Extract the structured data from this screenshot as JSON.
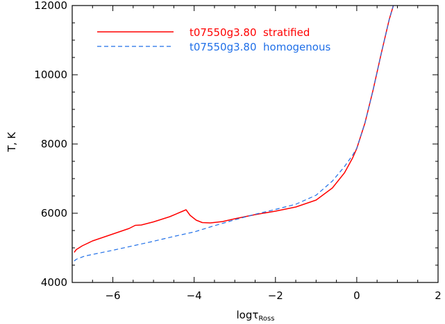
{
  "chart_data": {
    "type": "line",
    "xlabel": "logτ",
    "xlabel_sub": "Ross",
    "ylabel": "T, K",
    "xlim": [
      -7,
      2
    ],
    "ylim": [
      4000,
      12000
    ],
    "xticks": [
      -6,
      -4,
      -2,
      0,
      2
    ],
    "yticks": [
      4000,
      6000,
      8000,
      10000,
      12000
    ],
    "legend_position": "top-left",
    "series": [
      {
        "name": "t07550g3.80  stratified",
        "color": "#ff0000",
        "dash": "solid",
        "points": [
          [
            -6.95,
            4870
          ],
          [
            -6.9,
            4950
          ],
          [
            -6.75,
            5060
          ],
          [
            -6.5,
            5200
          ],
          [
            -6.0,
            5400
          ],
          [
            -5.6,
            5560
          ],
          [
            -5.45,
            5650
          ],
          [
            -5.3,
            5660
          ],
          [
            -5.0,
            5750
          ],
          [
            -4.6,
            5900
          ],
          [
            -4.3,
            6050
          ],
          [
            -4.2,
            6100
          ],
          [
            -4.1,
            5940
          ],
          [
            -3.95,
            5800
          ],
          [
            -3.8,
            5730
          ],
          [
            -3.6,
            5720
          ],
          [
            -3.3,
            5760
          ],
          [
            -3.0,
            5840
          ],
          [
            -2.5,
            5960
          ],
          [
            -2.0,
            6060
          ],
          [
            -1.5,
            6180
          ],
          [
            -1.0,
            6380
          ],
          [
            -0.6,
            6730
          ],
          [
            -0.3,
            7170
          ],
          [
            -0.1,
            7600
          ],
          [
            0.0,
            7870
          ],
          [
            0.2,
            8600
          ],
          [
            0.4,
            9550
          ],
          [
            0.6,
            10600
          ],
          [
            0.8,
            11600
          ],
          [
            0.9,
            12000
          ]
        ]
      },
      {
        "name": "t07550g3.80  homogenous",
        "color": "#1f6fe8",
        "dash": "dashed",
        "points": [
          [
            -6.95,
            4620
          ],
          [
            -6.9,
            4670
          ],
          [
            -6.7,
            4760
          ],
          [
            -6.5,
            4810
          ],
          [
            -6.0,
            4930
          ],
          [
            -5.5,
            5060
          ],
          [
            -5.0,
            5190
          ],
          [
            -4.5,
            5330
          ],
          [
            -4.0,
            5460
          ],
          [
            -3.5,
            5640
          ],
          [
            -3.0,
            5810
          ],
          [
            -2.5,
            5970
          ],
          [
            -2.0,
            6110
          ],
          [
            -1.5,
            6260
          ],
          [
            -1.0,
            6520
          ],
          [
            -0.6,
            6930
          ],
          [
            -0.3,
            7350
          ],
          [
            -0.1,
            7680
          ],
          [
            0.0,
            7880
          ],
          [
            0.2,
            8600
          ],
          [
            0.4,
            9550
          ],
          [
            0.6,
            10600
          ],
          [
            0.8,
            11600
          ],
          [
            0.9,
            12000
          ]
        ]
      }
    ]
  }
}
